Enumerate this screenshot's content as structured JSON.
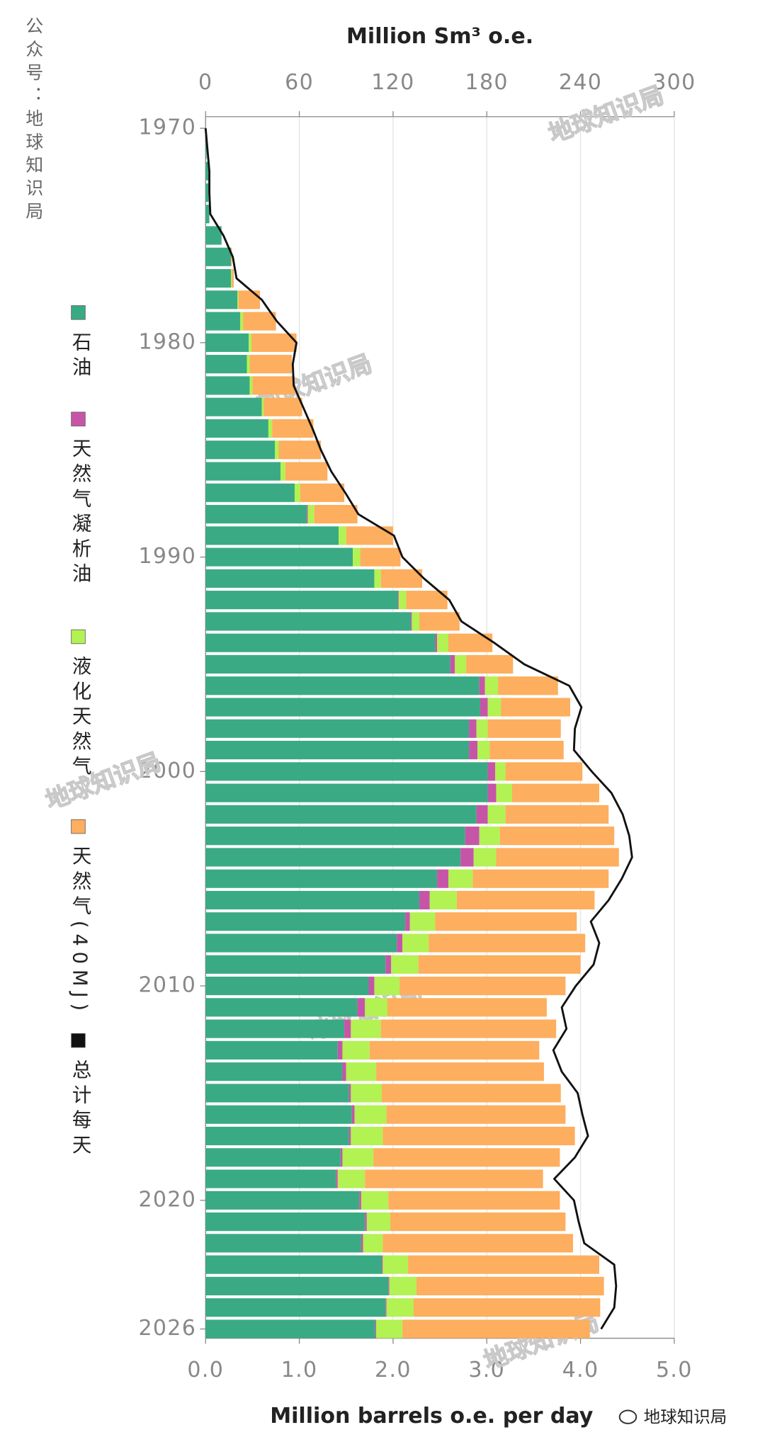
{
  "chart_data": {
    "type": "bar",
    "orientation": "horizontal",
    "stacked": true,
    "x_label": "Million barrels o.e. per day",
    "x2_label": "Million Sm³ o.e.",
    "side_text": "公众号：地球知识局",
    "watermark": "地球知识局",
    "source": "地球知识局",
    "legend": "left",
    "grid": true,
    "xlim": [
      0,
      5
    ],
    "xticks": [
      {
        "value": 0,
        "label": "0.0"
      },
      {
        "value": 1,
        "label": "1.0"
      },
      {
        "value": 2,
        "label": "2.0"
      },
      {
        "value": 3,
        "label": "3.0"
      },
      {
        "value": 4,
        "label": "4.0"
      },
      {
        "value": 5,
        "label": "5.0"
      }
    ],
    "x2lim": [
      0,
      300
    ],
    "x2ticks": [
      0,
      60,
      120,
      180,
      240,
      300
    ],
    "ylim": [
      1970,
      2026
    ],
    "yticks": [
      1970,
      1980,
      1990,
      2000,
      2010,
      2020,
      2026
    ],
    "y": [
      1970,
      1971,
      1972,
      1973,
      1974,
      1975,
      1976,
      1977,
      1978,
      1979,
      1980,
      1981,
      1982,
      1983,
      1984,
      1985,
      1986,
      1987,
      1988,
      1989,
      1990,
      1991,
      1992,
      1993,
      1994,
      1995,
      1996,
      1997,
      1998,
      1999,
      2000,
      2001,
      2002,
      2003,
      2004,
      2005,
      2006,
      2007,
      2008,
      2009,
      2010,
      2011,
      2012,
      2013,
      2014,
      2015,
      2016,
      2017,
      2018,
      2019,
      2020,
      2021,
      2022,
      2023,
      2024,
      2025,
      2026
    ],
    "series": [
      {
        "name": "石油",
        "color": "#3aaa85",
        "values": [
          0,
          0.01,
          0.03,
          0.03,
          0.04,
          0.17,
          0.27,
          0.27,
          0.34,
          0.37,
          0.46,
          0.44,
          0.47,
          0.6,
          0.67,
          0.74,
          0.8,
          0.95,
          1.08,
          1.42,
          1.57,
          1.8,
          2.05,
          2.19,
          2.45,
          2.61,
          2.92,
          2.93,
          2.81,
          2.81,
          3.01,
          3.01,
          2.89,
          2.77,
          2.72,
          2.47,
          2.28,
          2.13,
          2.04,
          1.92,
          1.74,
          1.62,
          1.48,
          1.41,
          1.46,
          1.53,
          1.56,
          1.53,
          1.44,
          1.39,
          1.64,
          1.7,
          1.66,
          1.88,
          1.95,
          1.92,
          1.81
        ]
      },
      {
        "name": "天然气凝析油",
        "color": "#c655a8",
        "values": [
          0,
          0,
          0,
          0,
          0,
          0,
          0,
          0,
          0,
          0,
          0,
          0,
          0,
          0,
          0,
          0,
          0,
          0,
          0.01,
          0,
          0,
          0,
          0.01,
          0.01,
          0.02,
          0.05,
          0.06,
          0.08,
          0.08,
          0.09,
          0.08,
          0.09,
          0.12,
          0.15,
          0.14,
          0.12,
          0.11,
          0.05,
          0.06,
          0.06,
          0.06,
          0.08,
          0.07,
          0.05,
          0.04,
          0.02,
          0.03,
          0.02,
          0.02,
          0.02,
          0.02,
          0.02,
          0.02,
          0.01,
          0.01,
          0.01,
          0.01
        ]
      },
      {
        "name": "液化天然气",
        "color": "#b2f252",
        "values": [
          0,
          0,
          0,
          0,
          0,
          0,
          0,
          0.01,
          0.01,
          0.03,
          0.03,
          0.03,
          0.03,
          0.02,
          0.04,
          0.04,
          0.05,
          0.06,
          0.07,
          0.08,
          0.08,
          0.07,
          0.08,
          0.08,
          0.12,
          0.12,
          0.14,
          0.14,
          0.12,
          0.13,
          0.11,
          0.17,
          0.19,
          0.22,
          0.24,
          0.26,
          0.29,
          0.27,
          0.28,
          0.29,
          0.27,
          0.24,
          0.32,
          0.29,
          0.32,
          0.33,
          0.34,
          0.34,
          0.33,
          0.29,
          0.29,
          0.25,
          0.21,
          0.27,
          0.29,
          0.29,
          0.28
        ]
      },
      {
        "name": "天然气(40MJ)",
        "color": "#fdae5e",
        "values": [
          0,
          0,
          0,
          0,
          0,
          0,
          0.01,
          0.02,
          0.23,
          0.35,
          0.48,
          0.45,
          0.45,
          0.41,
          0.44,
          0.45,
          0.45,
          0.47,
          0.46,
          0.5,
          0.43,
          0.44,
          0.44,
          0.43,
          0.47,
          0.5,
          0.64,
          0.74,
          0.78,
          0.79,
          0.82,
          0.93,
          1.1,
          1.22,
          1.31,
          1.45,
          1.47,
          1.51,
          1.67,
          1.73,
          1.77,
          1.7,
          1.87,
          1.81,
          1.79,
          1.91,
          1.91,
          2.05,
          1.99,
          1.9,
          1.83,
          1.87,
          2.03,
          2.04,
          2.0,
          1.99,
          2.0
        ]
      },
      {
        "name": "总计每天",
        "color": "#111111",
        "type": "line",
        "values": [
          0,
          0.02,
          0.04,
          0.04,
          0.05,
          0.19,
          0.29,
          0.33,
          0.6,
          0.76,
          0.97,
          0.93,
          0.94,
          1.04,
          1.14,
          1.23,
          1.34,
          1.49,
          1.63,
          2.01,
          2.1,
          2.33,
          2.6,
          2.73,
          3.08,
          3.4,
          3.88,
          4.01,
          3.94,
          3.93,
          4.12,
          4.33,
          4.45,
          4.52,
          4.55,
          4.44,
          4.3,
          4.11,
          4.2,
          4.14,
          3.95,
          3.8,
          3.85,
          3.71,
          3.8,
          3.97,
          4.02,
          4.08,
          3.94,
          3.72,
          3.93,
          3.98,
          4.04,
          4.36,
          4.38,
          4.36,
          4.22
        ]
      }
    ]
  }
}
